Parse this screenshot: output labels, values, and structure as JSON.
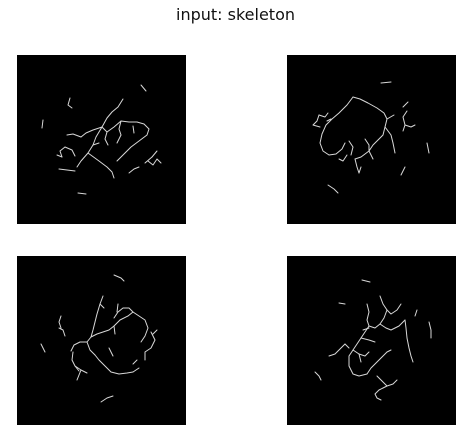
{
  "figure": {
    "title": "input: skeleton"
  },
  "panels": [
    {
      "id": "top-left"
    },
    {
      "id": "top-right"
    },
    {
      "id": "bottom-left"
    },
    {
      "id": "bottom-right"
    }
  ],
  "colors": {
    "background": "#ffffff",
    "panel": "#000000",
    "skeleton": "#d8d8d8"
  }
}
